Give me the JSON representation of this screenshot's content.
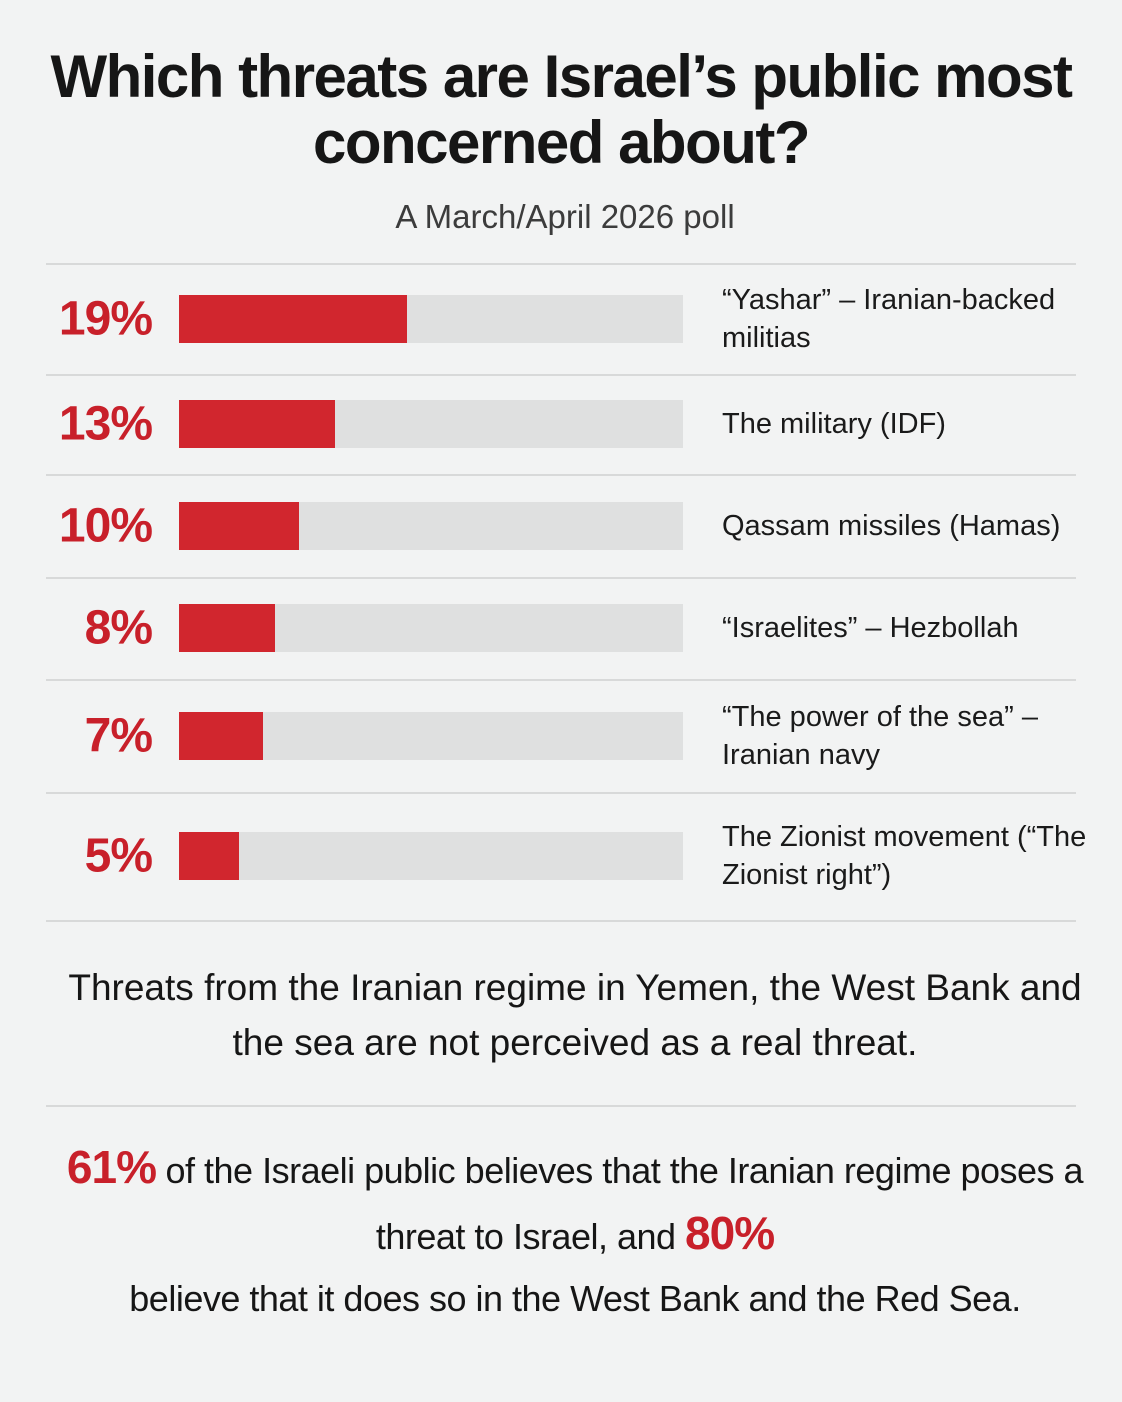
{
  "chart_data": {
    "type": "bar",
    "orientation": "horizontal",
    "title": "Which threats are Israel’s public most concerned about?",
    "subtitle": "A March/April 2026 poll",
    "categories": [
      "“Yashar” – Iranian-backed militias",
      "The military (IDF)",
      "Qassam missiles (Hamas)",
      "“Israelites” – Hezbollah",
      "“The power of the sea” – Iranian navy",
      "The Zionist movement (“The Zionist right”)"
    ],
    "values": [
      19,
      13,
      10,
      8,
      7,
      5
    ],
    "value_labels": [
      "19%",
      "13%",
      "10%",
      "8%",
      "7%",
      "5%"
    ],
    "xlim": [
      0,
      42
    ],
    "grid": false,
    "colors": {
      "bar": "#d1262e",
      "track": "#dfe0e0",
      "value_text": "#c8202a"
    }
  },
  "notes": {
    "line1": "Threats from the Iranian regime in Yemen, the West Bank and the sea are not perceived as a real threat.",
    "stat1": "61%",
    "text1": " of the Israeli public believes that the Iranian regime poses a threat to Israel, and ",
    "stat2": "80%",
    "text2": "believe that it does so in the West Bank and the Red Sea."
  }
}
